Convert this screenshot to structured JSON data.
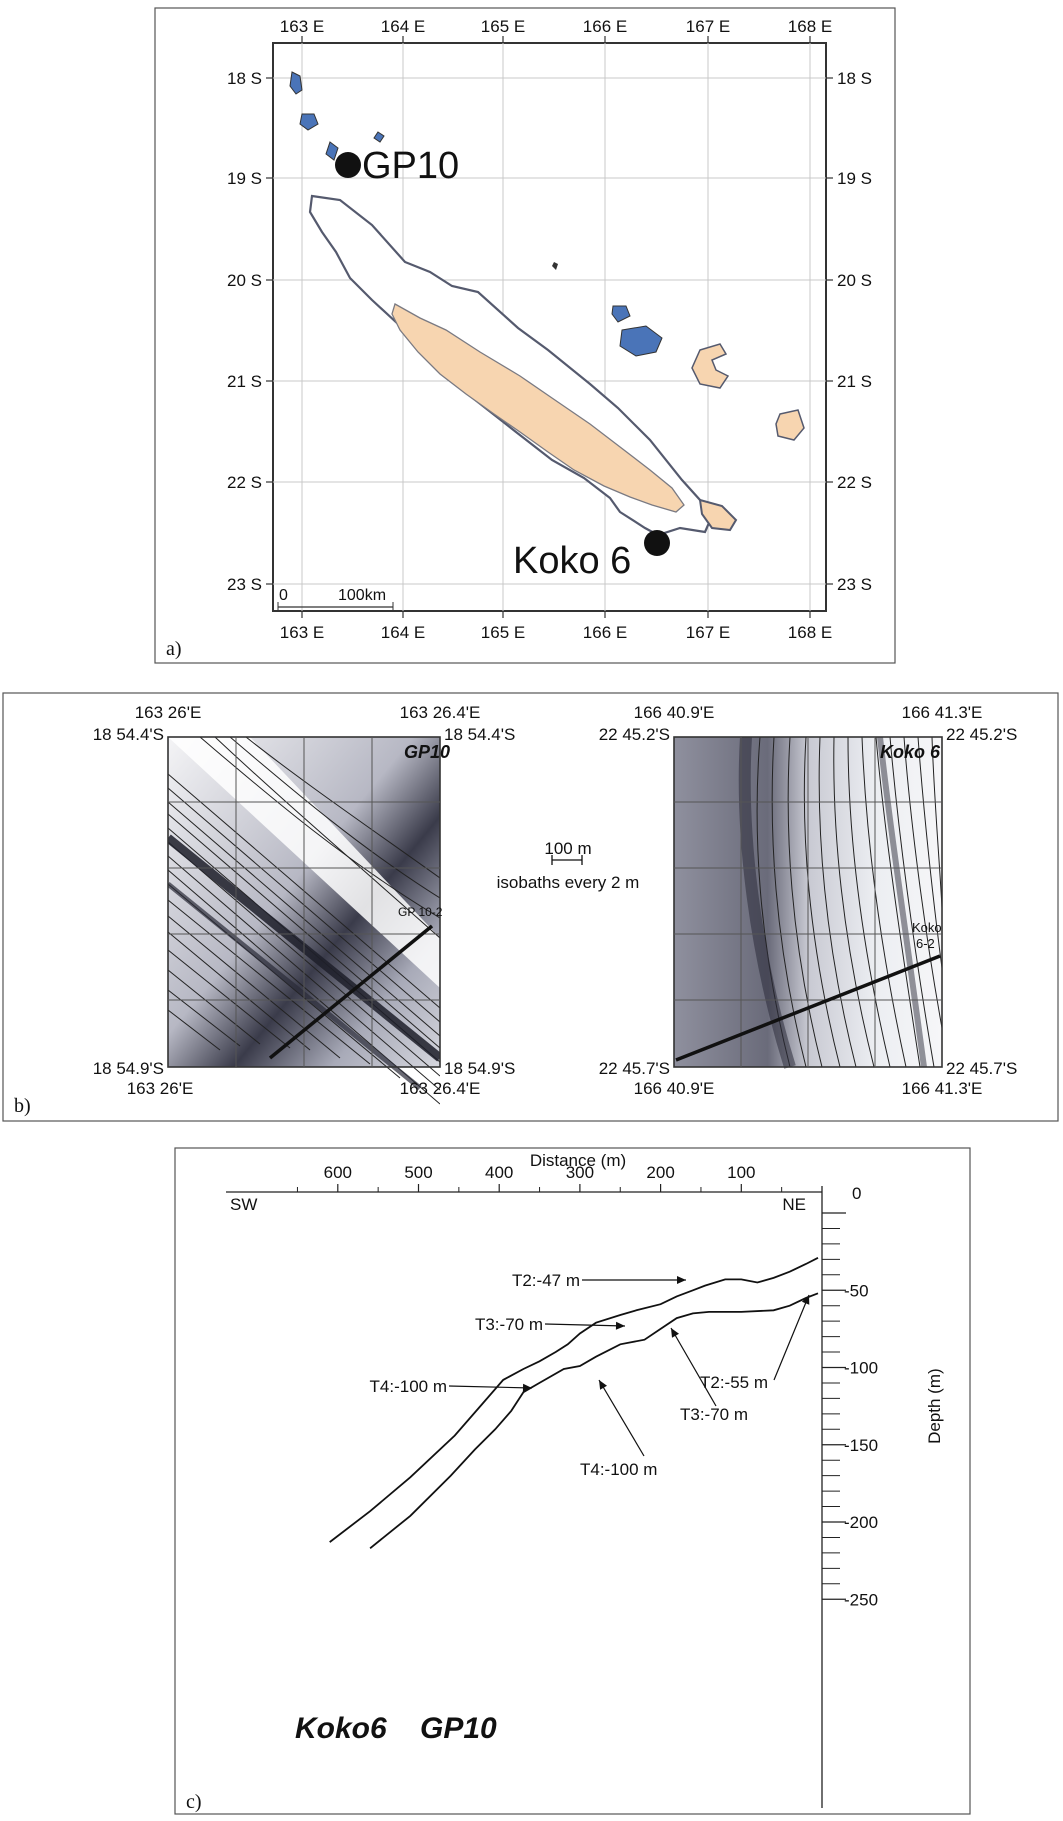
{
  "panel_a": {
    "letter": "a)",
    "lon_ticks": [
      "163 E",
      "164 E",
      "165 E",
      "166 E",
      "167 E",
      "168 E"
    ],
    "lat_ticks": [
      "18 S",
      "19 S",
      "20 S",
      "21 S",
      "22 S",
      "23 S"
    ],
    "sites": [
      {
        "name": "GP10"
      },
      {
        "name": "Koko 6"
      }
    ],
    "scale_zero": "0",
    "scale_label": "100km",
    "colors": {
      "land": "#f7d5b0",
      "shelf": "#4a74b8",
      "coast": "#555a6e"
    }
  },
  "panel_b": {
    "letter": "b)",
    "gp10": {
      "label": "GP10",
      "lon_left": "163 26'E",
      "lon_right": "163 26.4'E",
      "lat_top": "18 54.4'S",
      "lat_bottom": "18 54.9'S",
      "profile_label": "GP 10-2"
    },
    "koko6": {
      "label": "Koko 6",
      "lon_left": "166 40.9'E",
      "lon_right": "166 41.3'E",
      "lat_top": "22 45.2'S",
      "lat_bottom": "22 45.7'S",
      "profile_label_1": "Koko",
      "profile_label_2": "6-2"
    },
    "scale_label": "100 m",
    "isobath_label": "isobaths every 2 m"
  },
  "panel_c": {
    "letter": "c)",
    "xlabel": "Distance (m)",
    "ylabel": "Depth (m)",
    "x_ticks": [
      "600",
      "500",
      "400",
      "300",
      "200",
      "100"
    ],
    "y_ticks": [
      "0",
      "-50",
      "-100",
      "-150",
      "-200",
      "-250"
    ],
    "left_dir": "SW",
    "right_dir": "NE",
    "annotations": {
      "koko_t2": "T2:-47 m",
      "koko_t3": "T3:-70 m",
      "koko_t4": "T4:-100 m",
      "gp_t2": "T2:-55 m",
      "gp_t3": "T3:-70 m",
      "gp_t4": "T4:-100 m"
    },
    "series_labels": {
      "koko": "Koko6",
      "gp": "GP10"
    }
  },
  "chart_data": {
    "type": "line",
    "title": "",
    "xlabel": "Distance (m)",
    "ylabel": "Depth (m)",
    "xlim": [
      700,
      0
    ],
    "ylim": [
      -260,
      0
    ],
    "series": [
      {
        "name": "Koko6",
        "x": [
          610,
          560,
          510,
          455,
          420,
          395,
          370,
          350,
          330,
          315,
          300,
          280,
          250,
          230,
          200,
          180,
          160,
          145,
          120,
          100,
          80,
          60,
          40,
          20,
          5
        ],
        "y": [
          -213,
          -193,
          -171,
          -144,
          -123,
          -108,
          -101,
          -96,
          -90,
          -85,
          -78,
          -71,
          -66,
          -63,
          -59,
          -54,
          -50,
          -47,
          -43,
          -43,
          -45,
          -42,
          -38,
          -33,
          -29
        ]
      },
      {
        "name": "GP10",
        "x": [
          560,
          510,
          460,
          430,
          405,
          385,
          370,
          350,
          320,
          300,
          280,
          250,
          220,
          200,
          180,
          160,
          140,
          100,
          60,
          40,
          20,
          5
        ],
        "y": [
          -217,
          -196,
          -170,
          -153,
          -140,
          -128,
          -116,
          -110,
          -101,
          -99,
          -93,
          -85,
          -82,
          -75,
          -68,
          -65,
          -64,
          -64,
          -63,
          -60,
          -55,
          -52
        ]
      }
    ],
    "annotations": [
      {
        "text": "T2:-47 m",
        "series": "Koko6"
      },
      {
        "text": "T3:-70 m",
        "series": "Koko6"
      },
      {
        "text": "T4:-100 m",
        "series": "Koko6"
      },
      {
        "text": "T2:-55 m",
        "series": "GP10"
      },
      {
        "text": "T3:-70 m",
        "series": "GP10"
      },
      {
        "text": "T4:-100 m",
        "series": "GP10"
      }
    ]
  }
}
